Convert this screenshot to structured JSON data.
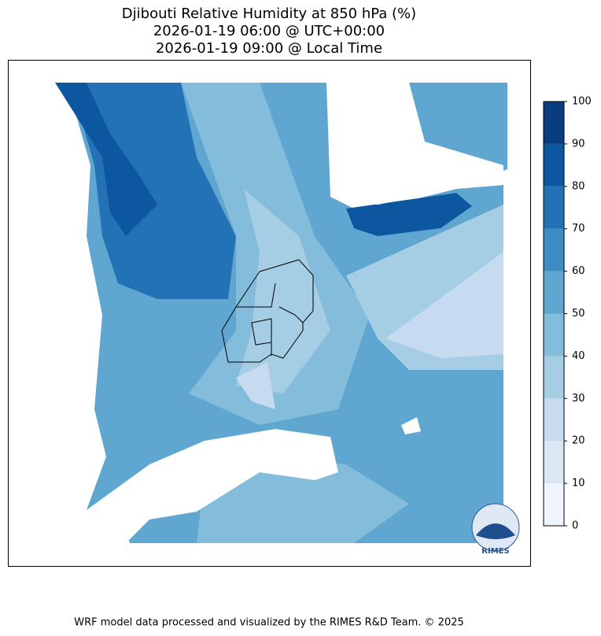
{
  "title": [
    "Djibouti Relative Humidity at 850 hPa (%)",
    "2026-01-19 06:00 @ UTC+00:00",
    "2026-01-19 09:00 @ Local Time"
  ],
  "colorbar": {
    "lim": [
      0,
      100
    ],
    "ticks": [
      0,
      10,
      20,
      30,
      40,
      50,
      60,
      70,
      80,
      90,
      100
    ],
    "colors": [
      "#eef5fc",
      "#dae8f6",
      "#c6dbef",
      "#a5cde3",
      "#84bcdb",
      "#5fa6d1",
      "#3d8dc4",
      "#2272b5",
      "#0d57a1",
      "#0a3d80"
    ]
  },
  "logo_text": "RIMES",
  "footer": "WRF model data processed and visualized by the RIMES R&D Team. © 2025"
}
